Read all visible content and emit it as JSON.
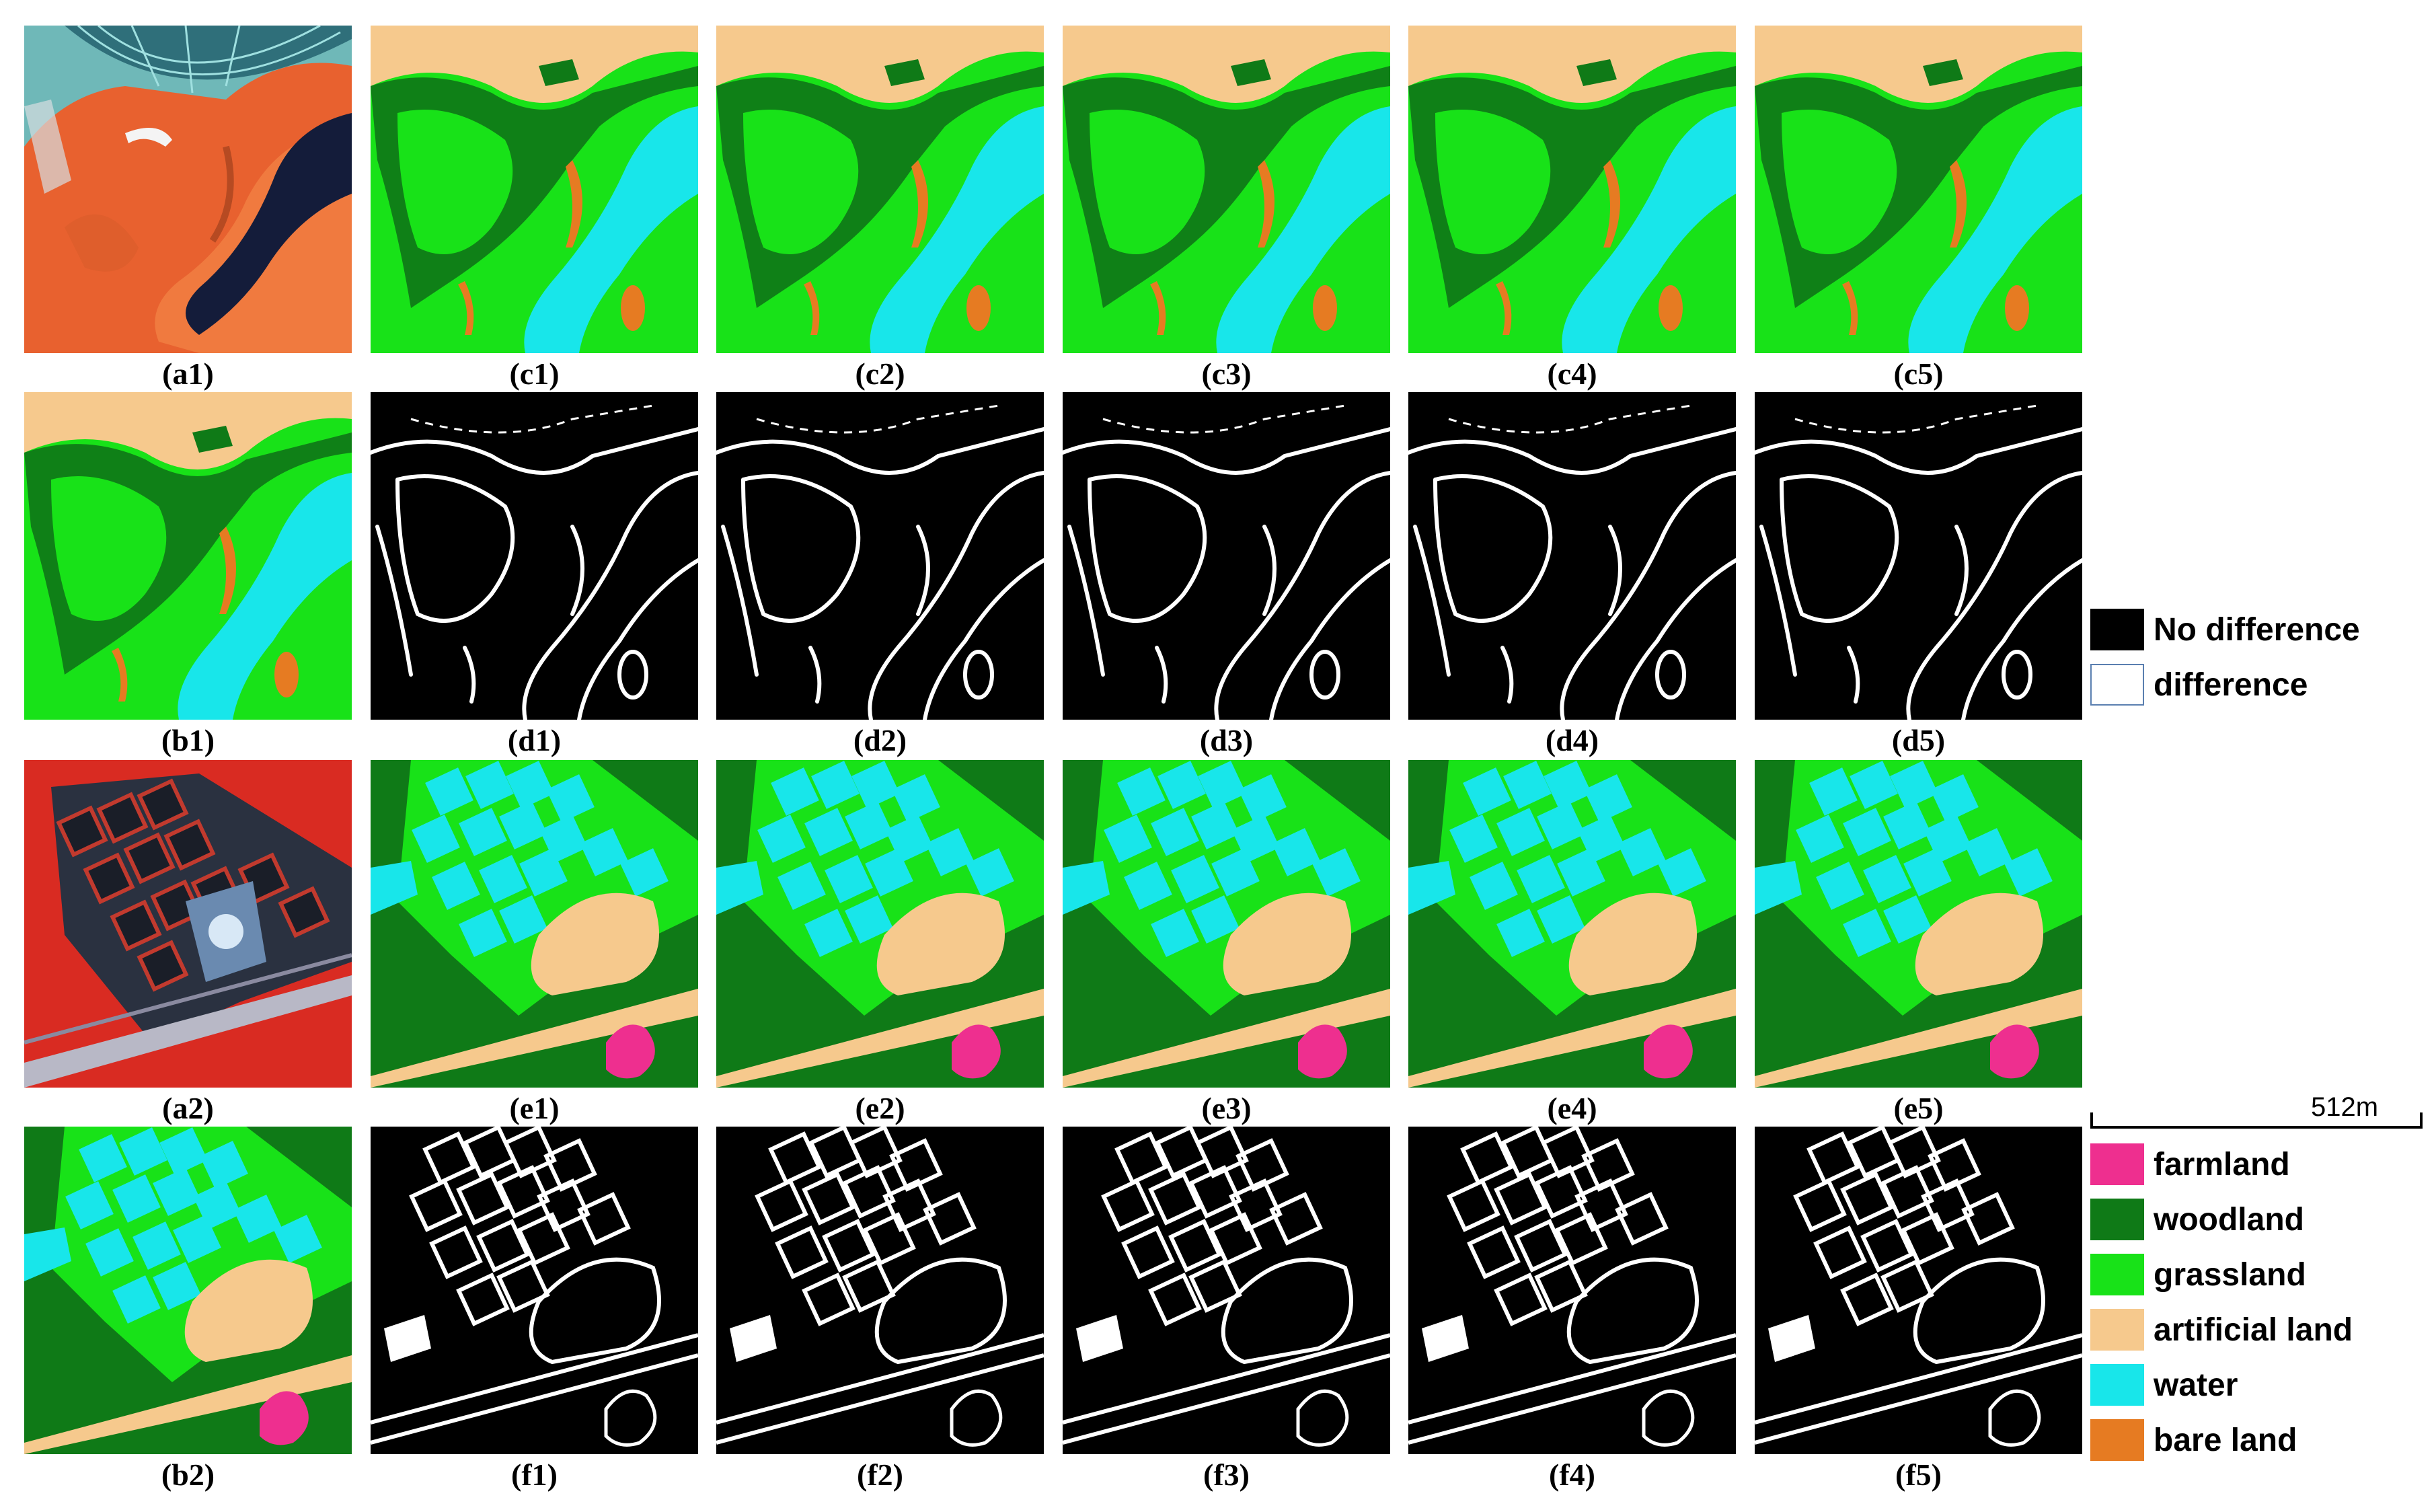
{
  "colors": {
    "farmland": "#ee2f8f",
    "woodland": "#0f7a17",
    "grassland": "#18e218",
    "artificial_land": "#f6c98d",
    "water": "#18e6ea",
    "bare_land": "#e67b22",
    "no_difference": "#000000",
    "difference": "#ffffff"
  },
  "rows": [
    {
      "panels": [
        {
          "label": "(a1)",
          "kind": "satellite-1"
        },
        {
          "label": "(c1)",
          "kind": "classmap-1"
        },
        {
          "label": "(c2)",
          "kind": "classmap-1"
        },
        {
          "label": "(c3)",
          "kind": "classmap-1"
        },
        {
          "label": "(c4)",
          "kind": "classmap-1"
        },
        {
          "label": "(c5)",
          "kind": "classmap-1"
        }
      ]
    },
    {
      "panels": [
        {
          "label": "(b1)",
          "kind": "classmap-1"
        },
        {
          "label": "(d1)",
          "kind": "diffmap-1"
        },
        {
          "label": "(d2)",
          "kind": "diffmap-1"
        },
        {
          "label": "(d3)",
          "kind": "diffmap-1"
        },
        {
          "label": "(d4)",
          "kind": "diffmap-1"
        },
        {
          "label": "(d5)",
          "kind": "diffmap-1"
        }
      ]
    },
    {
      "panels": [
        {
          "label": "(a2)",
          "kind": "satellite-2"
        },
        {
          "label": "(e1)",
          "kind": "classmap-2"
        },
        {
          "label": "(e2)",
          "kind": "classmap-2"
        },
        {
          "label": "(e3)",
          "kind": "classmap-2"
        },
        {
          "label": "(e4)",
          "kind": "classmap-2"
        },
        {
          "label": "(e5)",
          "kind": "classmap-2"
        }
      ]
    },
    {
      "panels": [
        {
          "label": "(b2)",
          "kind": "classmap-2"
        },
        {
          "label": "(f1)",
          "kind": "diffmap-2"
        },
        {
          "label": "(f2)",
          "kind": "diffmap-2"
        },
        {
          "label": "(f3)",
          "kind": "diffmap-2"
        },
        {
          "label": "(f4)",
          "kind": "diffmap-2"
        },
        {
          "label": "(f5)",
          "kind": "diffmap-2"
        }
      ]
    }
  ],
  "diff_legend": [
    {
      "label": "No difference",
      "color": "#000000"
    },
    {
      "label": "difference",
      "color": "#ffffff"
    }
  ],
  "scale_bar": {
    "label": "512m"
  },
  "class_legend": [
    {
      "label": "farmland",
      "color": "#ee2f8f"
    },
    {
      "label": "woodland",
      "color": "#0f7a17"
    },
    {
      "label": "grassland",
      "color": "#18e218"
    },
    {
      "label": "artificial land",
      "color": "#f6c98d"
    },
    {
      "label": "water",
      "color": "#18e6ea"
    },
    {
      "label": "bare land",
      "color": "#e67b22"
    }
  ]
}
